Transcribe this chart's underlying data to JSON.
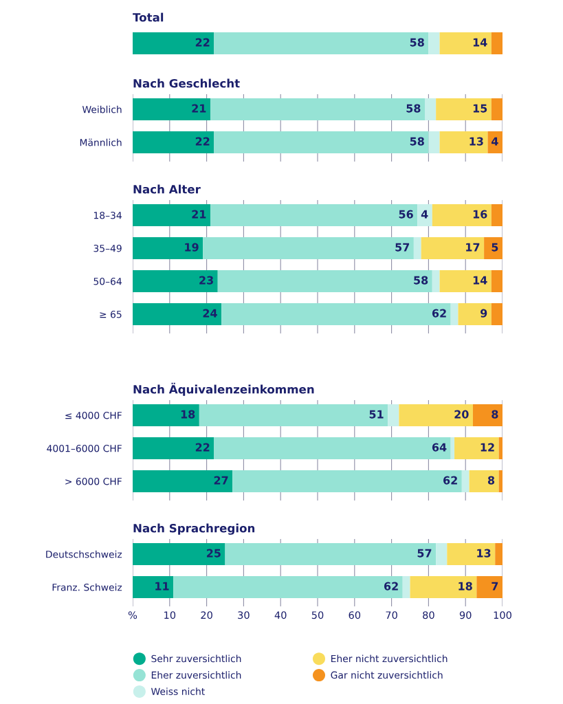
{
  "chart_data": [
    {
      "type": "bar",
      "orientation": "horizontal",
      "stacked": true,
      "title": "Total",
      "categories": [
        null
      ],
      "xlim": [
        0,
        100
      ],
      "tick_labels": false,
      "series": [
        {
          "color": "#00ad8e",
          "values": [
            22
          ],
          "value_labels": [
            "22"
          ]
        },
        {
          "color": "#96e3d5",
          "values": [
            58
          ],
          "value_labels": [
            "58"
          ]
        },
        {
          "color": "#c8f0eb",
          "values": [
            3
          ],
          "value_labels": [
            null
          ]
        },
        {
          "color": "#f9dc5c",
          "values": [
            14
          ],
          "value_labels": [
            "14"
          ]
        },
        {
          "color": "#f5921e",
          "values": [
            3
          ],
          "value_labels": [
            null
          ]
        }
      ]
    },
    {
      "type": "bar",
      "orientation": "horizontal",
      "stacked": true,
      "title": "Nach Geschlecht",
      "categories": [
        "Weiblich",
        "Männlich"
      ],
      "xlim": [
        0,
        100
      ],
      "xticks": [
        0,
        10,
        20,
        30,
        40,
        50,
        60,
        70,
        80,
        90,
        100
      ],
      "tick_labels": "y",
      "grid": "x",
      "series": [
        {
          "color": "#00ad8e",
          "values": [
            21,
            22
          ],
          "value_labels": [
            "21",
            "22"
          ]
        },
        {
          "color": "#96e3d5",
          "values": [
            58,
            58
          ],
          "value_labels": [
            "58",
            "58"
          ]
        },
        {
          "color": "#c8f0eb",
          "values": [
            3,
            3
          ],
          "value_labels": [
            null,
            null
          ]
        },
        {
          "color": "#f9dc5c",
          "values": [
            15,
            13
          ],
          "value_labels": [
            "15",
            "13"
          ]
        },
        {
          "color": "#f5921e",
          "values": [
            3,
            4
          ],
          "value_labels": [
            null,
            "4"
          ]
        }
      ]
    },
    {
      "type": "bar",
      "orientation": "horizontal",
      "stacked": true,
      "title": "Nach Alter",
      "categories": [
        "18–34",
        "35–49",
        "50–64",
        "≥ 65"
      ],
      "xlim": [
        0,
        100
      ],
      "xticks": [
        0,
        10,
        20,
        30,
        40,
        50,
        60,
        70,
        80,
        90,
        100
      ],
      "tick_labels": "y",
      "grid": "x",
      "series": [
        {
          "color": "#00ad8e",
          "values": [
            21,
            19,
            23,
            24
          ],
          "value_labels": [
            "21",
            "19",
            "23",
            "24"
          ]
        },
        {
          "color": "#96e3d5",
          "values": [
            56,
            57,
            58,
            62
          ],
          "value_labels": [
            "56",
            "57",
            "58",
            "62"
          ]
        },
        {
          "color": "#c8f0eb",
          "values": [
            4,
            2,
            2,
            2
          ],
          "value_labels": [
            "4",
            null,
            null,
            null
          ]
        },
        {
          "color": "#f9dc5c",
          "values": [
            16,
            17,
            14,
            9
          ],
          "value_labels": [
            "16",
            "17",
            "14",
            "9"
          ]
        },
        {
          "color": "#f5921e",
          "values": [
            3,
            5,
            3,
            3
          ],
          "value_labels": [
            null,
            "5",
            null,
            null
          ]
        }
      ]
    },
    {
      "type": "bar",
      "orientation": "horizontal",
      "stacked": true,
      "title": "Nach Äquivalenzeinkommen",
      "categories": [
        "≤ 4000 CHF",
        "4001–6000 CHF",
        "> 6000 CHF"
      ],
      "xlim": [
        0,
        100
      ],
      "xticks": [
        0,
        10,
        20,
        30,
        40,
        50,
        60,
        70,
        80,
        90,
        100
      ],
      "tick_labels": "y",
      "grid": "x",
      "series": [
        {
          "color": "#00ad8e",
          "values": [
            18,
            22,
            27
          ],
          "value_labels": [
            "18",
            "22",
            "27"
          ]
        },
        {
          "color": "#96e3d5",
          "values": [
            51,
            64,
            62
          ],
          "value_labels": [
            "51",
            "64",
            "62"
          ]
        },
        {
          "color": "#c8f0eb",
          "values": [
            3,
            1,
            2
          ],
          "value_labels": [
            null,
            null,
            null
          ]
        },
        {
          "color": "#f9dc5c",
          "values": [
            20,
            12,
            8
          ],
          "value_labels": [
            "20",
            "12",
            "8"
          ]
        },
        {
          "color": "#f5921e",
          "values": [
            8,
            1,
            1
          ],
          "value_labels": [
            "8",
            null,
            null
          ]
        }
      ]
    },
    {
      "type": "bar",
      "orientation": "horizontal",
      "stacked": true,
      "title": "Nach Sprachregion",
      "categories": [
        "Deutschschweiz",
        "Franz. Schweiz"
      ],
      "xlim": [
        0,
        100
      ],
      "xticks": [
        {
          "value": 0,
          "label": "%"
        },
        10,
        20,
        30,
        40,
        50,
        60,
        70,
        80,
        90,
        100
      ],
      "grid": "x",
      "legend": "bottom",
      "series": [
        {
          "name": "Sehr zuversichtlich",
          "color": "#00ad8e",
          "values": [
            25,
            11
          ],
          "value_labels": [
            "25",
            "11"
          ]
        },
        {
          "name": "Eher zuversichtlich",
          "color": "#96e3d5",
          "values": [
            57,
            62
          ],
          "value_labels": [
            "57",
            "62"
          ]
        },
        {
          "name": "Weiss nicht",
          "color": "#c8f0eb",
          "values": [
            3,
            2
          ],
          "value_labels": [
            null,
            null
          ]
        },
        {
          "name": "Eher nicht zuversichtlich",
          "color": "#f9dc5c",
          "values": [
            13,
            18
          ],
          "value_labels": [
            "13",
            "18"
          ]
        },
        {
          "name": "Gar nicht zuversichtlich",
          "color": "#f5921e",
          "values": [
            2,
            7
          ],
          "value_labels": [
            null,
            "7"
          ]
        }
      ]
    }
  ]
}
